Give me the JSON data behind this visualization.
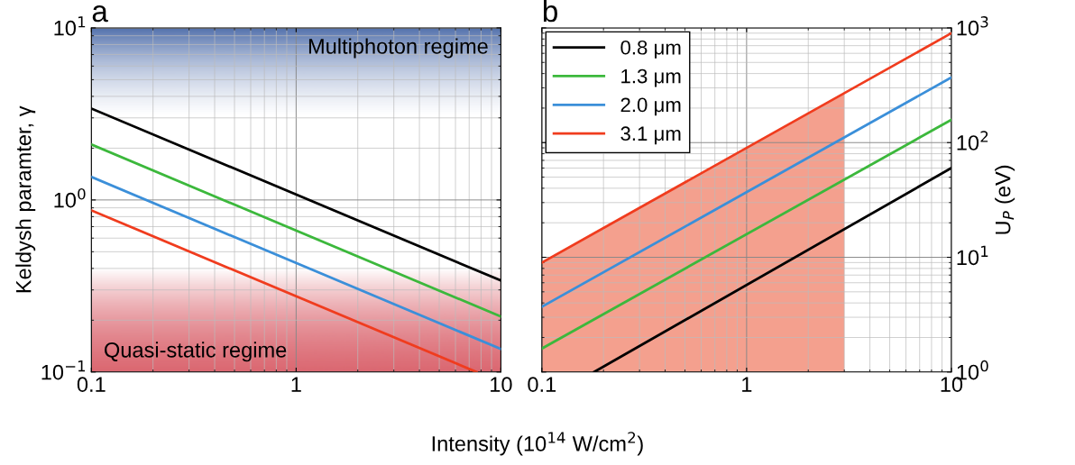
{
  "chart_data": [
    {
      "type": "line",
      "title": "a",
      "xlabel": "Intensity (10$^{14}$ W/cm$^{2}$)",
      "ylabel": "Keldysh paramter, γ",
      "log": "xy",
      "grid": true,
      "legend": false,
      "xlim": [
        0.1,
        10
      ],
      "ylim": [
        0.1,
        10
      ],
      "xticks": [
        0.1,
        1,
        10
      ],
      "yticks": [
        {
          "value": 0.1,
          "label": "10$^{−1}$"
        },
        {
          "value": 1,
          "label": "10$^{0}$"
        },
        {
          "value": 10,
          "label": "10$^{1}$"
        }
      ],
      "series": [
        {
          "color": "#000000",
          "x": [
            0.1,
            10
          ],
          "values": [
            3.4,
            0.34
          ]
        },
        {
          "color": "#3cb83c",
          "x": [
            0.1,
            10
          ],
          "values": [
            2.1,
            0.21
          ]
        },
        {
          "color": "#3b8fd9",
          "x": [
            0.1,
            10
          ],
          "values": [
            1.36,
            0.136
          ]
        },
        {
          "color": "#f03c1e",
          "x": [
            0.1,
            7.6
          ],
          "values": [
            0.87,
            0.1
          ]
        }
      ],
      "bands": [
        {
          "axis": "y",
          "from": 3,
          "to": 10,
          "label": "Multiphoton regime",
          "color": "#4a6aa8"
        },
        {
          "axis": "y",
          "from": 0.1,
          "to": 0.4,
          "label": "Quasi-static regime",
          "color": "#d9606a"
        }
      ]
    },
    {
      "type": "line",
      "title": "b",
      "y2label": "U$_{P}$ (eV)",
      "log": "xy",
      "grid": true,
      "legend": "top left",
      "xlim": [
        0.1,
        10
      ],
      "ylim": [
        1,
        1000
      ],
      "xticks": [
        0.1,
        1,
        10
      ],
      "yticks": [
        {
          "value": 1,
          "label": "10$^{0}$"
        },
        {
          "value": 10,
          "label": "10$^{1}$"
        },
        {
          "value": 100,
          "label": "10$^{2}$"
        },
        {
          "value": 1000,
          "label": "10$^{3}$"
        }
      ],
      "series": [
        {
          "type": "area",
          "color": "#f4a08e",
          "x": [
            0.1,
            3
          ],
          "values": [
            9,
            270
          ]
        },
        {
          "name": "0.8 μm",
          "color": "#000000",
          "x": [
            0.18,
            10
          ],
          "values": [
            1,
            60
          ]
        },
        {
          "name": "1.3 μm",
          "color": "#3cb83c",
          "x": [
            0.1,
            10
          ],
          "values": [
            1.6,
            158
          ]
        },
        {
          "name": "2.0 μm",
          "color": "#3b8fd9",
          "x": [
            0.1,
            10
          ],
          "values": [
            3.7,
            370
          ]
        },
        {
          "name": "3.1 μm",
          "color": "#f03c1e",
          "x": [
            0.1,
            10
          ],
          "values": [
            9,
            900
          ]
        }
      ]
    }
  ]
}
